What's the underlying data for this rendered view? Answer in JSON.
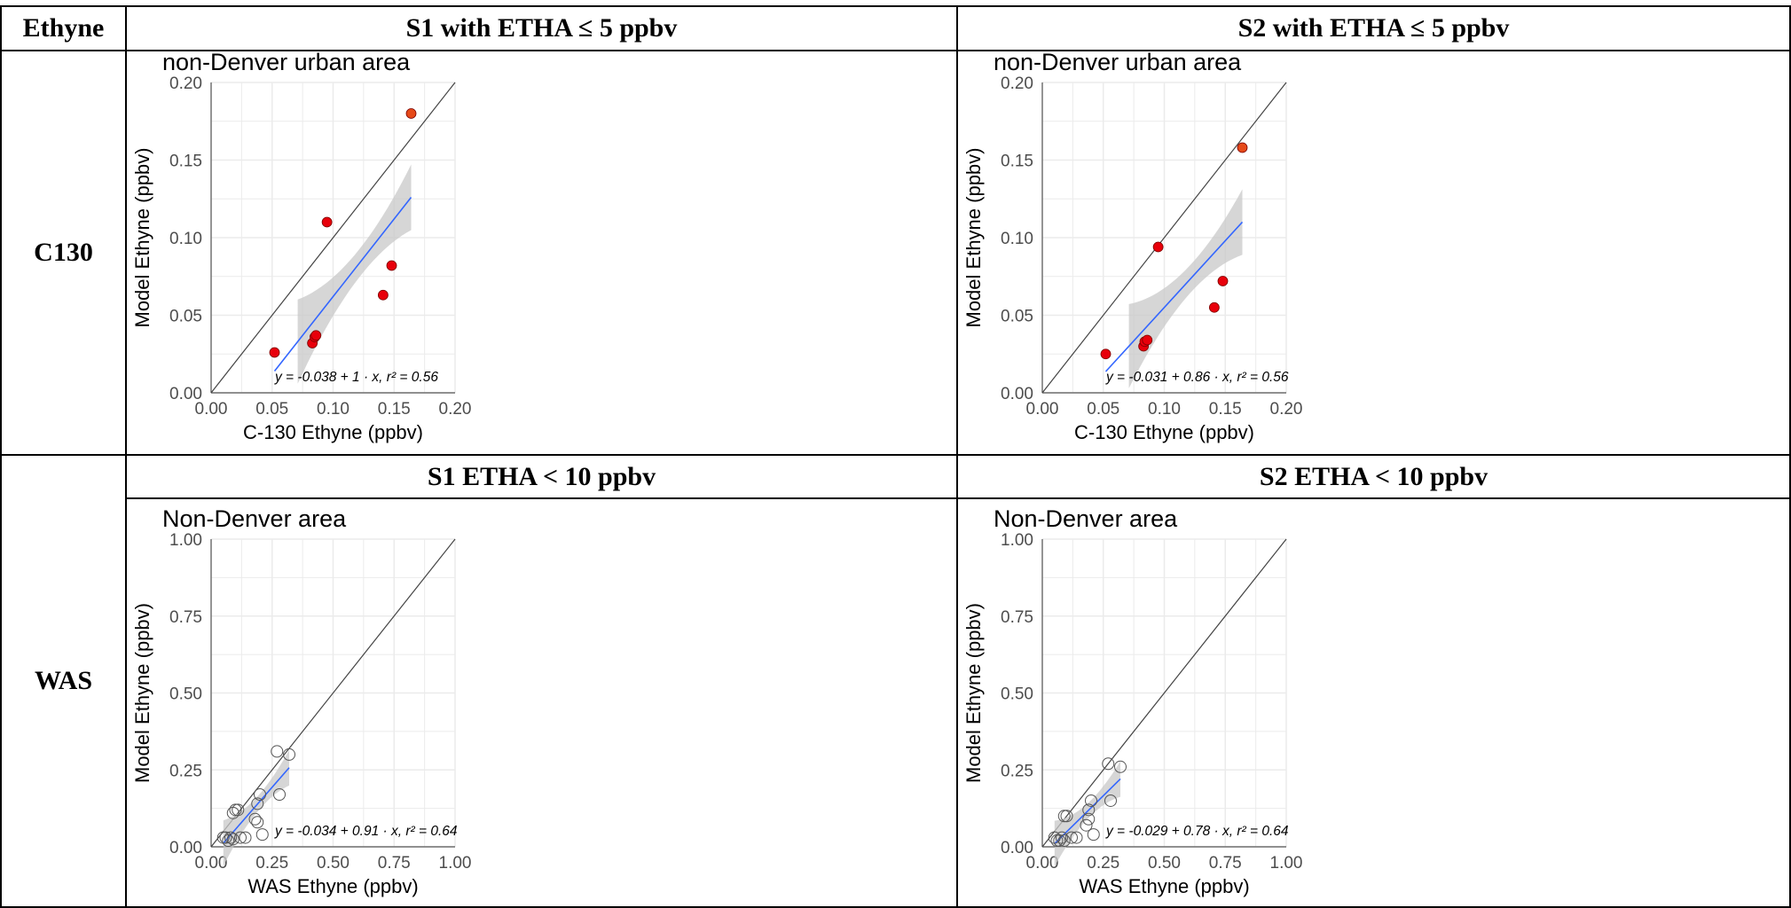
{
  "table": {
    "corner": "Ethyne",
    "row_labels": [
      "C130",
      "WAS"
    ],
    "headers_top": [
      "S1 with ETHA ≤ 5 ppbv",
      "S2 with ETHA ≤ 5 ppbv"
    ],
    "headers_bottom": [
      "S1 ETHA < 10 ppbv",
      "S2 ETHA < 10 ppbv"
    ]
  },
  "colors": {
    "c130_point": "#e8000b",
    "c130_point_high": "#e64a19",
    "fit_line": "#3366ff",
    "ribbon": "#c8c8c8",
    "identity_line": "#444444",
    "gridline": "#ebebeb"
  },
  "chart_data": [
    {
      "type": "scatter",
      "title": "non-Denver urban area",
      "xlabel": "C-130 Ethyne (ppbv)",
      "ylabel": "Model Ethyne (ppbv)",
      "xlim": [
        0,
        0.2
      ],
      "ylim": [
        0,
        0.2
      ],
      "xticks": [
        "0.00",
        "0.05",
        "0.10",
        "0.15",
        "0.20"
      ],
      "yticks": [
        "0.00",
        "0.05",
        "0.10",
        "0.15",
        "0.20"
      ],
      "grid": true,
      "marker": "filled",
      "x": [
        0.052,
        0.083,
        0.085,
        0.086,
        0.095,
        0.141,
        0.148,
        0.164
      ],
      "y": [
        0.026,
        0.032,
        0.036,
        0.037,
        0.11,
        0.063,
        0.082,
        0.18
      ],
      "fit": {
        "intercept": -0.038,
        "slope": 1.0,
        "x_range": [
          0.052,
          0.164
        ],
        "band_start": 0.071
      },
      "annotation": "y = -0.038 + 1 · x,  r² = 0.56"
    },
    {
      "type": "scatter",
      "title": "non-Denver urban area",
      "xlabel": "C-130 Ethyne (ppbv)",
      "ylabel": "Model Ethyne (ppbv)",
      "xlim": [
        0,
        0.2
      ],
      "ylim": [
        0,
        0.2
      ],
      "xticks": [
        "0.00",
        "0.05",
        "0.10",
        "0.15",
        "0.20"
      ],
      "yticks": [
        "0.00",
        "0.05",
        "0.10",
        "0.15",
        "0.20"
      ],
      "grid": true,
      "marker": "filled",
      "x": [
        0.052,
        0.083,
        0.084,
        0.086,
        0.095,
        0.141,
        0.148,
        0.164
      ],
      "y": [
        0.025,
        0.03,
        0.033,
        0.034,
        0.094,
        0.055,
        0.072,
        0.158
      ],
      "fit": {
        "intercept": -0.031,
        "slope": 0.86,
        "x_range": [
          0.052,
          0.164
        ],
        "band_start": 0.071
      },
      "annotation": "y = -0.031 + 0.86 · x,  r² = 0.56"
    },
    {
      "type": "scatter",
      "title": "Non-Denver area",
      "xlabel": "WAS Ethyne (ppbv)",
      "ylabel": "Model Ethyne (ppbv)",
      "xlim": [
        0,
        1.0
      ],
      "ylim": [
        0,
        1.0
      ],
      "xticks": [
        "0.00",
        "0.25",
        "0.50",
        "0.75",
        "1.00"
      ],
      "yticks": [
        "0.00",
        "0.25",
        "0.50",
        "0.75",
        "1.00"
      ],
      "grid": true,
      "marker": "open",
      "x": [
        0.05,
        0.06,
        0.07,
        0.08,
        0.09,
        0.09,
        0.1,
        0.11,
        0.12,
        0.14,
        0.18,
        0.19,
        0.19,
        0.2,
        0.21,
        0.27,
        0.28,
        0.32
      ],
      "y": [
        0.03,
        0.03,
        0.02,
        0.03,
        0.11,
        0.025,
        0.12,
        0.12,
        0.03,
        0.03,
        0.09,
        0.14,
        0.08,
        0.17,
        0.04,
        0.31,
        0.17,
        0.3
      ],
      "fit": {
        "intercept": -0.034,
        "slope": 0.91,
        "x_range": [
          0.05,
          0.32
        ],
        "band_start": 0.05
      },
      "annotation": "y = -0.034 + 0.91 · x,  r² = 0.64"
    },
    {
      "type": "scatter",
      "title": "Non-Denver area",
      "xlabel": "WAS Ethyne (ppbv)",
      "ylabel": "Model Ethyne (ppbv)",
      "xlim": [
        0,
        1.0
      ],
      "ylim": [
        0,
        1.0
      ],
      "xticks": [
        "0.00",
        "0.25",
        "0.50",
        "0.75",
        "1.00"
      ],
      "yticks": [
        "0.00",
        "0.25",
        "0.50",
        "0.75",
        "1.00"
      ],
      "grid": true,
      "marker": "open",
      "x": [
        0.05,
        0.06,
        0.07,
        0.08,
        0.09,
        0.09,
        0.1,
        0.12,
        0.14,
        0.18,
        0.19,
        0.19,
        0.2,
        0.21,
        0.27,
        0.28,
        0.32
      ],
      "y": [
        0.03,
        0.02,
        0.02,
        0.03,
        0.1,
        0.02,
        0.1,
        0.03,
        0.03,
        0.07,
        0.12,
        0.09,
        0.15,
        0.04,
        0.27,
        0.15,
        0.26
      ],
      "fit": {
        "intercept": -0.029,
        "slope": 0.78,
        "x_range": [
          0.05,
          0.32
        ],
        "band_start": 0.05
      },
      "annotation": "y = -0.029 + 0.78 · x,  r² = 0.64"
    }
  ]
}
